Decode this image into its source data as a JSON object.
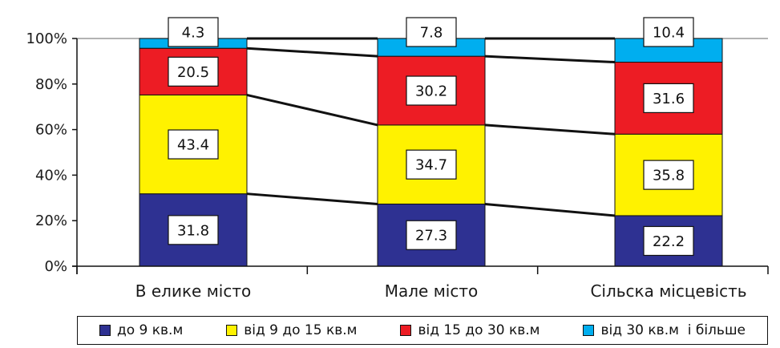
{
  "chart_data": {
    "type": "bar",
    "stacked": true,
    "percent_stacked": true,
    "categories": [
      "В елике місто",
      "Мале місто",
      "Сільска місцевість"
    ],
    "series": [
      {
        "name": "до 9 кв.м",
        "color": "#2e3192",
        "values": [
          31.8,
          27.3,
          22.2
        ]
      },
      {
        "name": "від 9 до 15 кв.м",
        "color": "#fff200",
        "values": [
          43.4,
          34.7,
          35.8
        ]
      },
      {
        "name": "від 15 до 30 кв.м",
        "color": "#ed1c24",
        "values": [
          20.5,
          30.2,
          31.6
        ]
      },
      {
        "name": "від 30 кв.м  і більше",
        "color": "#00aeef",
        "values": [
          4.3,
          7.8,
          10.4
        ]
      }
    ],
    "y_ticks": [
      "0%",
      "20%",
      "40%",
      "60%",
      "80%",
      "100%"
    ],
    "ylim": [
      0,
      100
    ],
    "series_connector_lines": true,
    "legend_position": "bottom",
    "grid": false,
    "title": "",
    "xlabel": "",
    "ylabel": ""
  }
}
